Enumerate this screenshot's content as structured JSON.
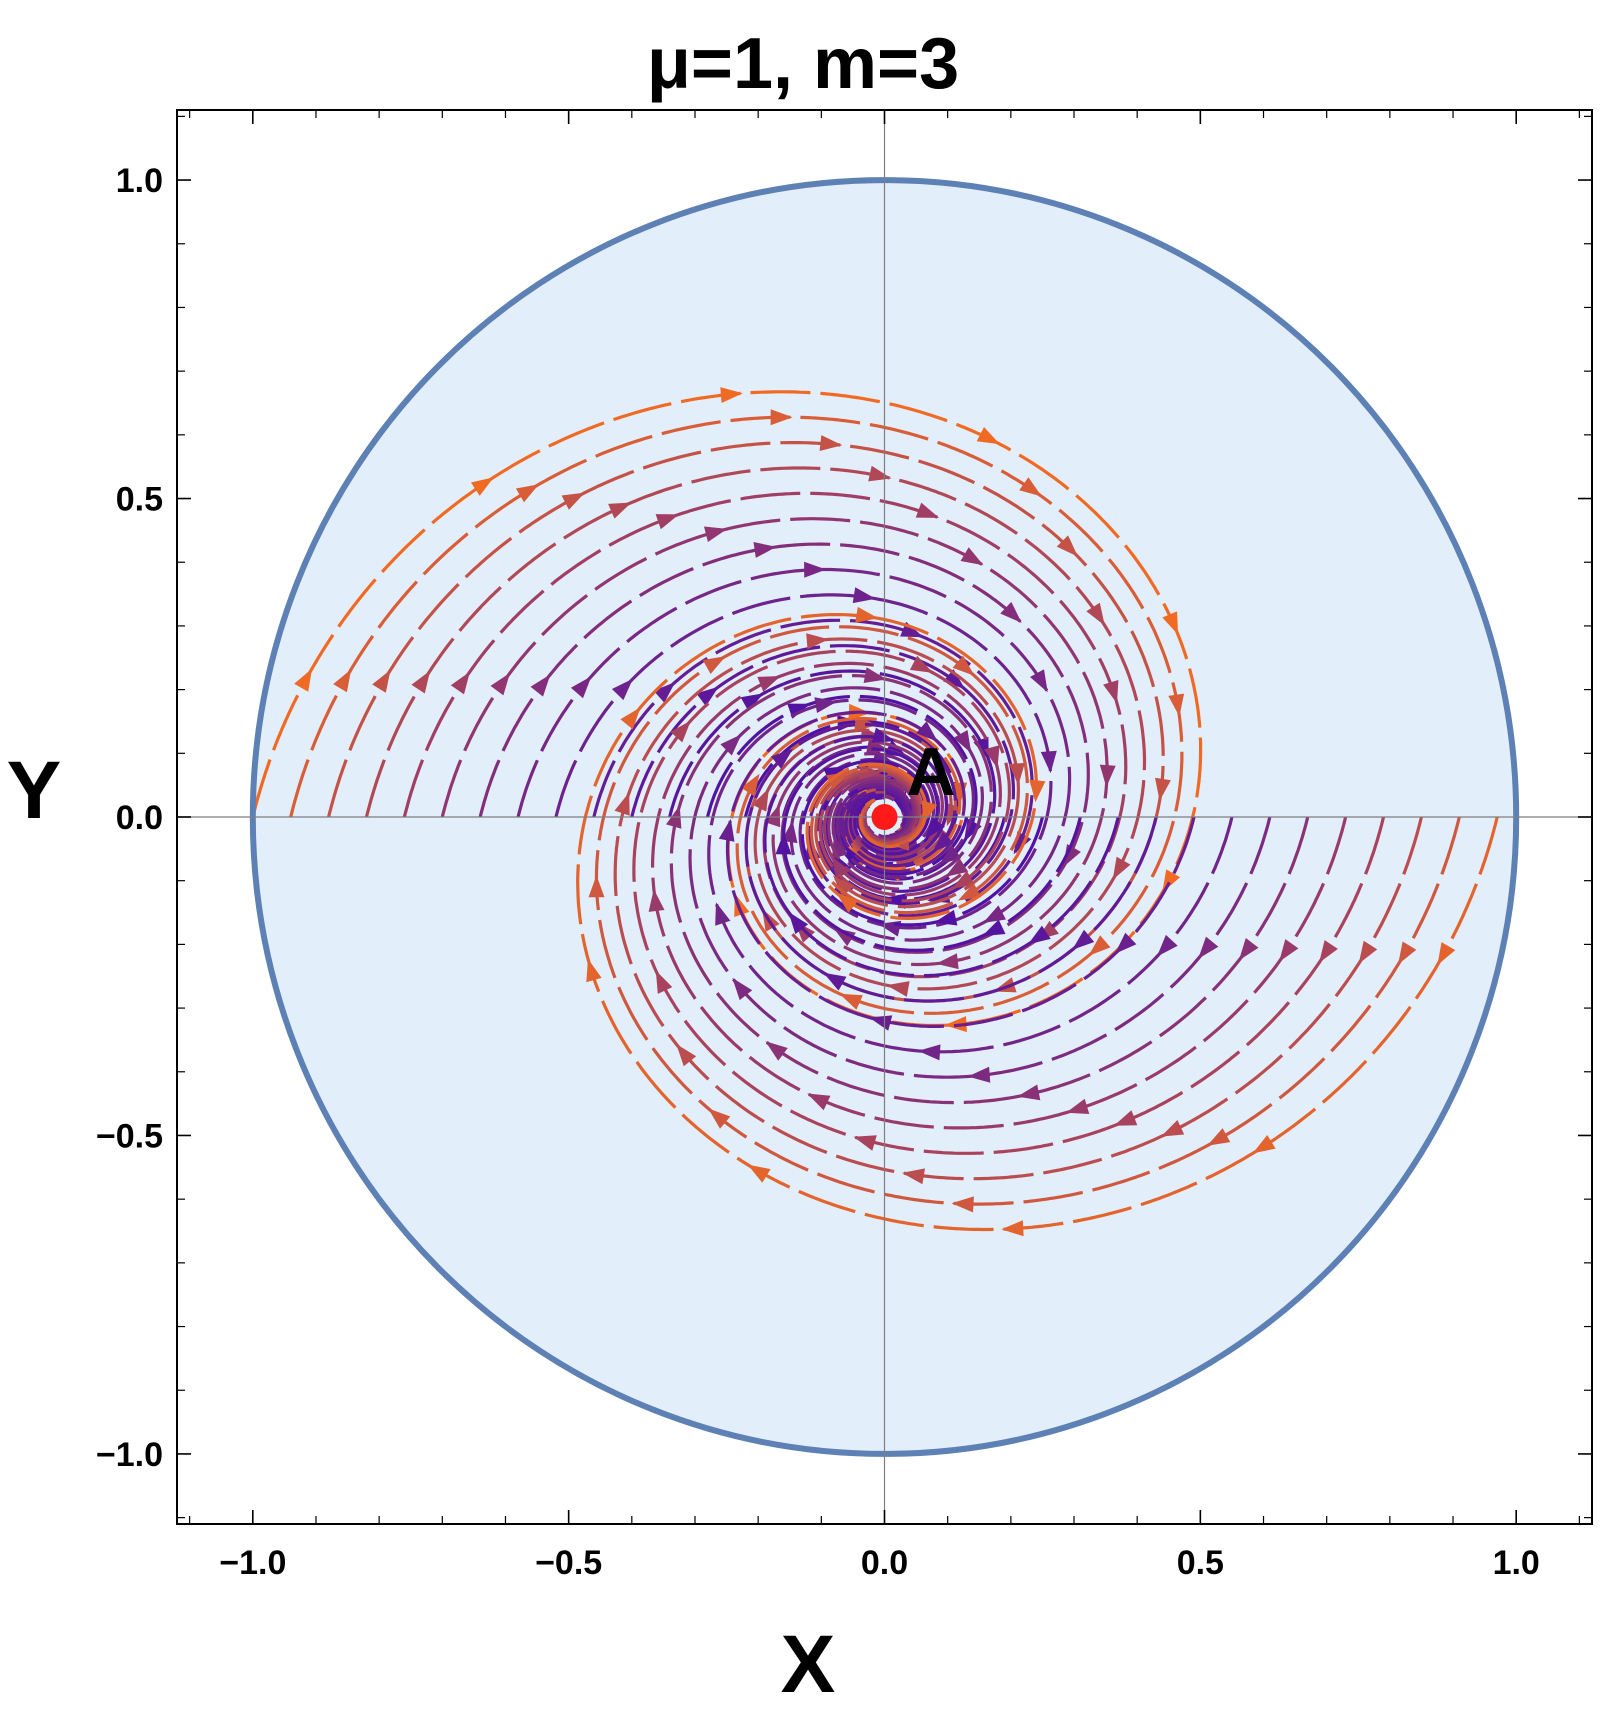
{
  "chart_data": {
    "type": "stream",
    "title": "μ=1, m=3",
    "xlabel": "X",
    "ylabel": "Y",
    "xlim": [
      -1.12,
      1.12
    ],
    "ylim": [
      -1.11,
      1.11
    ],
    "xticks": [
      -1.0,
      -0.5,
      0.0,
      0.5,
      1.0
    ],
    "xtick_labels": [
      "−1.0",
      "−0.5",
      "0.0",
      "0.5",
      "1.0"
    ],
    "yticks": [
      -1.0,
      -0.5,
      0.0,
      0.5,
      1.0
    ],
    "ytick_labels": [
      "−1.0",
      "−0.5",
      "0.0",
      "0.5",
      "1.0"
    ],
    "region": {
      "shape": "unit-disk",
      "radius": 1.0,
      "center": [
        0,
        0
      ]
    },
    "critical_points": [
      {
        "label": "A",
        "x": 0.0,
        "y": 0.0
      }
    ],
    "flow": {
      "description": "clockwise spiral streamlines converging to A",
      "sample_points": [
        {
          "x": -0.7,
          "y": 0.0,
          "direction": "up"
        },
        {
          "x": 0.7,
          "y": 0.0,
          "direction": "down"
        },
        {
          "x": 0.0,
          "y": 0.9,
          "direction": "right"
        },
        {
          "x": 0.0,
          "y": -0.9,
          "direction": "left"
        }
      ]
    },
    "grid": false,
    "legend": "none"
  },
  "colors": {
    "disk_fill": "#e3eefb",
    "boundary": "#5e81b5",
    "slow": "#4b0fa8",
    "fast": "#f06a24",
    "point": "#ff1a1a",
    "axes_line": "#7f7f7f"
  }
}
